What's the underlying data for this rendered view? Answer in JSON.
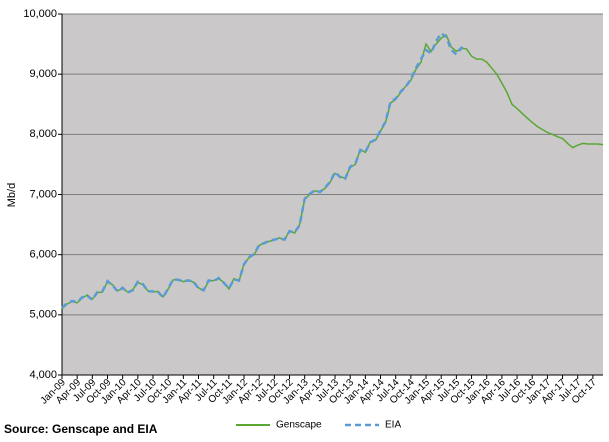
{
  "chart_data": {
    "type": "line",
    "y_label": "Mb/d",
    "source": "Source: Genscape and EIA",
    "categories": [
      "Jan-09",
      null,
      null,
      "Apr-09",
      null,
      null,
      "Jul-09",
      null,
      null,
      "Oct-09",
      null,
      null,
      "Jan-10",
      null,
      null,
      "Apr-10",
      null,
      null,
      "Jul-10",
      null,
      null,
      "Oct-10",
      null,
      null,
      "Jan-11",
      null,
      null,
      "Apr-11",
      null,
      null,
      "Jul-11",
      null,
      null,
      "Oct-11",
      null,
      null,
      "Jan-12",
      null,
      null,
      "Apr-12",
      null,
      null,
      "Jul-12",
      null,
      null,
      "Oct-12",
      null,
      null,
      "Jan-13",
      null,
      null,
      "Apr-13",
      null,
      null,
      "Jul-13",
      null,
      null,
      "Oct-13",
      null,
      null,
      "Jan-14",
      null,
      null,
      "Apr-14",
      null,
      null,
      "Jul-14",
      null,
      null,
      "Oct-14",
      null,
      null,
      "Jan-15",
      null,
      null,
      "Apr-15",
      null,
      null,
      "Jul-15",
      null,
      null,
      "Oct-15",
      null,
      null,
      "Jan-16",
      null,
      null,
      "Apr-16",
      null,
      null,
      "Jul-16",
      null,
      null,
      "Oct-16",
      null,
      null,
      "Jan-17",
      null,
      null,
      "Apr-17",
      null,
      null,
      "Jul-17",
      null,
      null,
      "Oct-17",
      null,
      null
    ],
    "series": [
      {
        "name": "Genscape",
        "color": "#5aa832",
        "dashed": false,
        "values": [
          5100,
          5180,
          5220,
          5200,
          5280,
          5330,
          5260,
          5370,
          5380,
          5550,
          5500,
          5400,
          5440,
          5380,
          5420,
          5540,
          5500,
          5400,
          5380,
          5390,
          5300,
          5430,
          5580,
          5590,
          5550,
          5580,
          5540,
          5450,
          5400,
          5560,
          5570,
          5600,
          5540,
          5430,
          5600,
          5560,
          5850,
          5950,
          6000,
          6150,
          6200,
          6220,
          6240,
          6280,
          6240,
          6400,
          6360,
          6500,
          6920,
          7000,
          7060,
          7050,
          7100,
          7200,
          7350,
          7300,
          7270,
          7450,
          7500,
          7750,
          7700,
          7880,
          7900,
          8050,
          8200,
          8520,
          8580,
          8700,
          8800,
          8900,
          9080,
          9200,
          9500,
          9380,
          9500,
          9600,
          9650,
          9450,
          9380,
          9430,
          9420,
          9300,
          9250,
          9250,
          9200,
          9100,
          9000,
          8850,
          8700,
          8500,
          8430,
          8350,
          8270,
          8200,
          8130,
          8080,
          8030,
          8000,
          7960,
          7930,
          7850,
          7780,
          7820,
          7850,
          7840,
          7840,
          7840,
          7830
        ]
      },
      {
        "name": "EIA",
        "color": "#5b9bd5",
        "dashed": true,
        "values": [
          5120,
          5190,
          5230,
          5210,
          5290,
          5320,
          5250,
          5380,
          5390,
          5560,
          5490,
          5390,
          5450,
          5370,
          5410,
          5550,
          5510,
          5390,
          5390,
          5380,
          5290,
          5440,
          5590,
          5580,
          5560,
          5570,
          5550,
          5440,
          5410,
          5570,
          5560,
          5610,
          5530,
          5440,
          5590,
          5570,
          5840,
          5960,
          6010,
          6160,
          6190,
          6230,
          6250,
          6270,
          6250,
          6390,
          6370,
          6490,
          6930,
          7010,
          7070,
          7040,
          7110,
          7210,
          7370,
          7290,
          7260,
          7460,
          7510,
          7740,
          7710,
          7870,
          7910,
          8060,
          8210,
          8550,
          8590,
          8710,
          8790,
          8920,
          9100,
          9250,
          9400,
          9350,
          9550,
          9680,
          9620,
          9400,
          9330,
          9440,
          9410,
          null,
          null,
          null,
          null,
          null,
          null,
          null,
          null,
          null,
          null,
          null,
          null,
          null,
          null,
          null,
          null,
          null,
          null,
          null,
          null,
          null,
          null,
          null,
          null,
          null,
          null,
          null
        ]
      }
    ],
    "ylim": [
      4000,
      10000
    ],
    "yticks": [
      {
        "value": 4000,
        "label": "4,000"
      },
      {
        "value": 5000,
        "label": "5,000"
      },
      {
        "value": 6000,
        "label": "6,000"
      },
      {
        "value": 7000,
        "label": "7,000"
      },
      {
        "value": 8000,
        "label": "8,000"
      },
      {
        "value": 9000,
        "label": "9,000"
      },
      {
        "value": 10000,
        "label": "10,000"
      }
    ],
    "grid": true
  }
}
